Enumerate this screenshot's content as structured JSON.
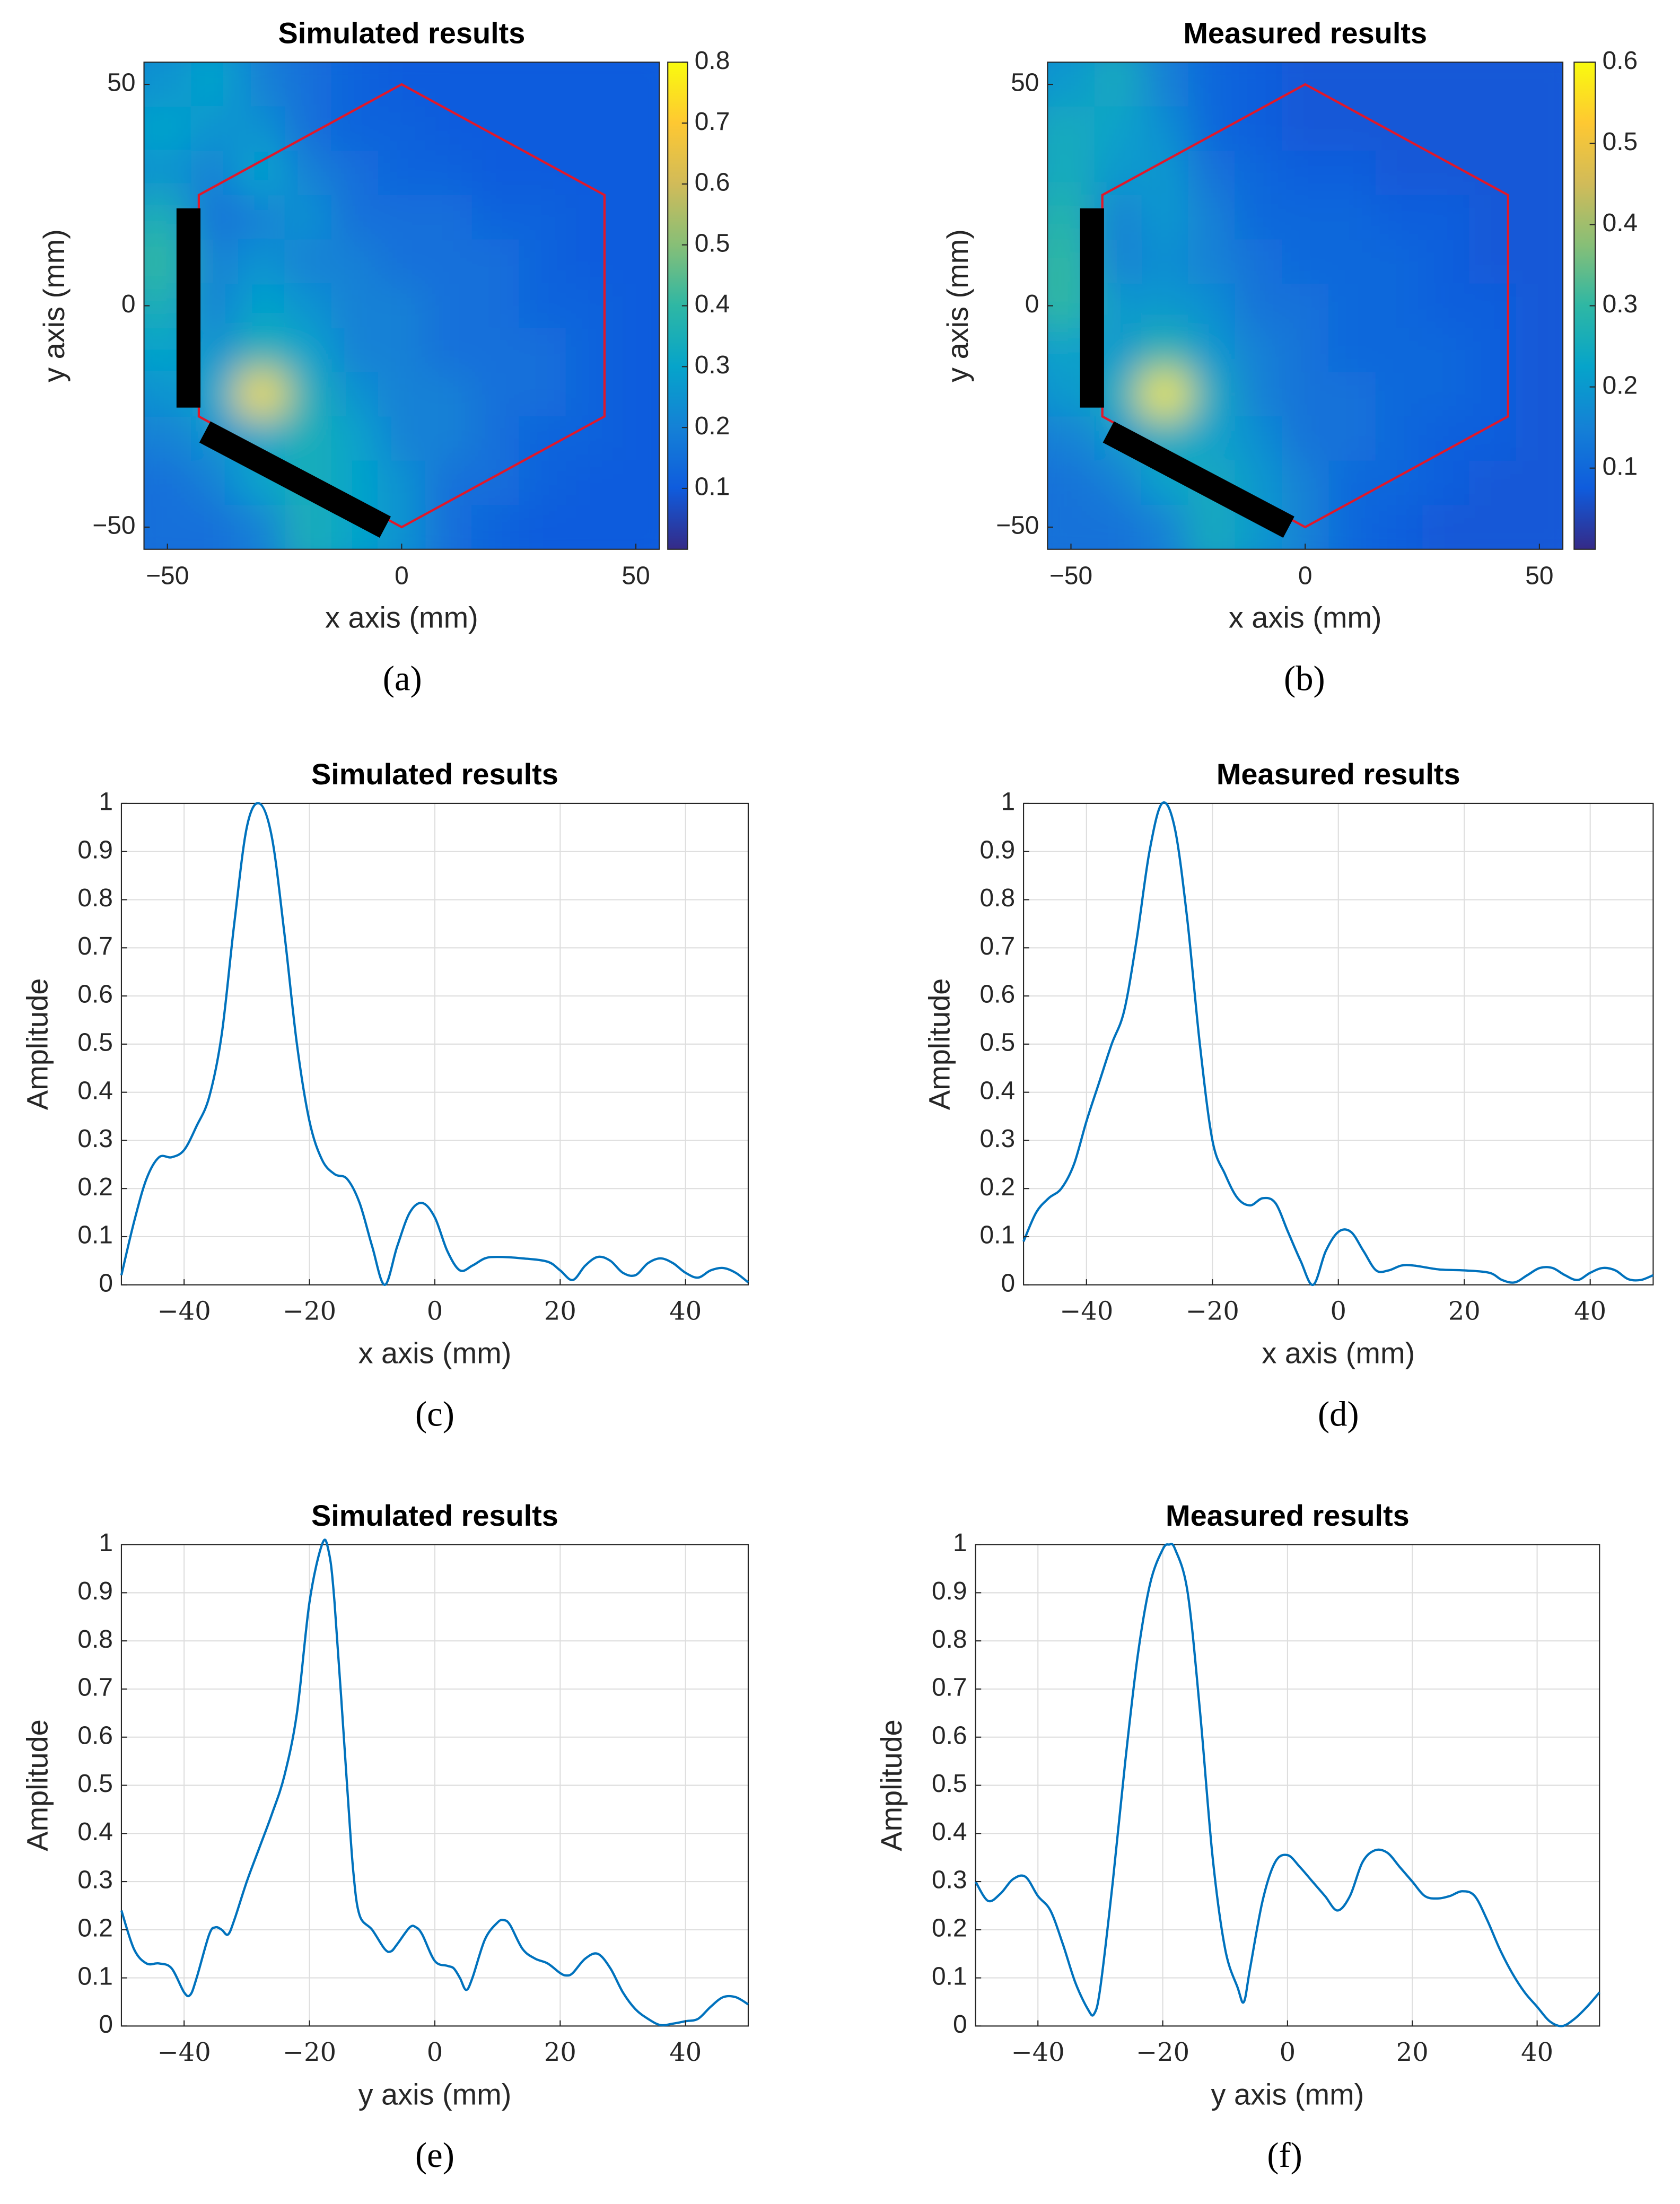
{
  "chart_data": [
    {
      "type": "heatmap",
      "title": "Simulated results",
      "xlabel": "x axis (mm)",
      "ylabel": "y axis (mm)",
      "caption": "(a)",
      "colormap": "parula",
      "x": [
        -50,
        -40,
        -30,
        -20,
        -10,
        0,
        10,
        20,
        30,
        40,
        50
      ],
      "y": [
        50,
        40,
        30,
        20,
        10,
        0,
        -10,
        -20,
        -30,
        -40,
        -50
      ],
      "z": [
        [
          0.25,
          0.3,
          0.2,
          0.15,
          0.12,
          0.1,
          0.1,
          0.1,
          0.1,
          0.1,
          0.1
        ],
        [
          0.3,
          0.25,
          0.25,
          0.15,
          0.12,
          0.12,
          0.1,
          0.1,
          0.1,
          0.1,
          0.1
        ],
        [
          0.25,
          0.2,
          0.3,
          0.2,
          0.15,
          0.12,
          0.12,
          0.1,
          0.1,
          0.1,
          0.1
        ],
        [
          0.35,
          0.15,
          0.2,
          0.25,
          0.15,
          0.15,
          0.15,
          0.12,
          0.12,
          0.1,
          0.1
        ],
        [
          0.4,
          0.2,
          0.25,
          0.2,
          0.2,
          0.15,
          0.15,
          0.15,
          0.12,
          0.1,
          0.1
        ],
        [
          0.35,
          0.2,
          0.3,
          0.25,
          0.2,
          0.2,
          0.15,
          0.15,
          0.12,
          0.12,
          0.1
        ],
        [
          0.3,
          0.25,
          0.35,
          0.3,
          0.2,
          0.2,
          0.15,
          0.15,
          0.15,
          0.12,
          0.1
        ],
        [
          0.25,
          0.3,
          0.75,
          0.35,
          0.25,
          0.2,
          0.2,
          0.15,
          0.15,
          0.12,
          0.1
        ],
        [
          0.2,
          0.25,
          0.3,
          0.35,
          0.3,
          0.2,
          0.2,
          0.15,
          0.12,
          0.12,
          0.1
        ],
        [
          0.15,
          0.2,
          0.3,
          0.35,
          0.3,
          0.25,
          0.15,
          0.15,
          0.12,
          0.1,
          0.1
        ],
        [
          0.15,
          0.15,
          0.2,
          0.35,
          0.3,
          0.25,
          0.15,
          0.12,
          0.1,
          0.1,
          0.1
        ]
      ],
      "xlim": [
        -55,
        55
      ],
      "ylim": [
        -55,
        55
      ],
      "xticks": [
        {
          "value": -50,
          "label": "−50"
        },
        0,
        50
      ],
      "yticks": [
        {
          "value": -50,
          "label": "−50"
        },
        0,
        50
      ],
      "clim": [
        0,
        0.8
      ],
      "cticks": [
        0.1,
        0.2,
        0.3,
        0.4,
        0.5,
        0.6,
        0.7,
        0.8
      ]
    },
    {
      "type": "heatmap",
      "title": "Measured results",
      "xlabel": "x axis (mm)",
      "ylabel": "y axis (mm)",
      "caption": "(b)",
      "colormap": "parula",
      "x": [
        -50,
        -40,
        -30,
        -20,
        -10,
        0,
        10,
        20,
        30,
        40,
        50
      ],
      "y": [
        50,
        40,
        30,
        20,
        10,
        0,
        -10,
        -20,
        -30,
        -40,
        -50
      ],
      "z": [
        [
          0.2,
          0.25,
          0.15,
          0.1,
          0.08,
          0.07,
          0.07,
          0.07,
          0.07,
          0.07,
          0.07
        ],
        [
          0.25,
          0.22,
          0.18,
          0.1,
          0.08,
          0.07,
          0.07,
          0.07,
          0.07,
          0.07,
          0.07
        ],
        [
          0.25,
          0.2,
          0.2,
          0.12,
          0.1,
          0.08,
          0.08,
          0.07,
          0.07,
          0.07,
          0.07
        ],
        [
          0.28,
          0.15,
          0.2,
          0.15,
          0.1,
          0.1,
          0.1,
          0.08,
          0.08,
          0.07,
          0.07
        ],
        [
          0.3,
          0.15,
          0.18,
          0.15,
          0.12,
          0.1,
          0.1,
          0.1,
          0.08,
          0.07,
          0.07
        ],
        [
          0.3,
          0.2,
          0.2,
          0.18,
          0.12,
          0.12,
          0.1,
          0.1,
          0.08,
          0.08,
          0.07
        ],
        [
          0.22,
          0.2,
          0.28,
          0.2,
          0.15,
          0.12,
          0.1,
          0.1,
          0.1,
          0.08,
          0.07
        ],
        [
          0.2,
          0.25,
          0.58,
          0.25,
          0.15,
          0.12,
          0.12,
          0.1,
          0.1,
          0.08,
          0.07
        ],
        [
          0.15,
          0.2,
          0.25,
          0.22,
          0.18,
          0.12,
          0.12,
          0.1,
          0.08,
          0.08,
          0.07
        ],
        [
          0.12,
          0.15,
          0.22,
          0.25,
          0.2,
          0.15,
          0.1,
          0.1,
          0.08,
          0.07,
          0.07
        ],
        [
          0.12,
          0.12,
          0.15,
          0.25,
          0.2,
          0.15,
          0.1,
          0.08,
          0.07,
          0.07,
          0.07
        ]
      ],
      "xlim": [
        -55,
        55
      ],
      "ylim": [
        -55,
        55
      ],
      "xticks": [
        {
          "value": -50,
          "label": "−50"
        },
        0,
        50
      ],
      "yticks": [
        {
          "value": -50,
          "label": "−50"
        },
        0,
        50
      ],
      "clim": [
        0,
        0.6
      ],
      "cticks": [
        0.1,
        0.2,
        0.3,
        0.4,
        0.5,
        0.6
      ]
    },
    {
      "type": "line",
      "title": "Simulated results",
      "xlabel": "x axis (mm)",
      "ylabel": "Amplitude",
      "caption": "(c)",
      "color": "#0072bd",
      "grid": true,
      "x": [
        -50,
        -48,
        -46,
        -44,
        -42,
        -40,
        -38,
        -36,
        -34,
        -32,
        -30,
        -28,
        -26,
        -24,
        -22,
        -20,
        -18,
        -16,
        -14,
        -12,
        -10,
        -8,
        -6,
        -4,
        -2,
        0,
        2,
        4,
        6,
        8,
        10,
        14,
        18,
        20,
        22,
        24,
        26,
        28,
        30,
        32,
        34,
        36,
        38,
        40,
        42,
        44,
        46,
        48,
        50
      ],
      "values": [
        0.02,
        0.13,
        0.22,
        0.265,
        0.265,
        0.28,
        0.33,
        0.39,
        0.52,
        0.75,
        0.95,
        1.0,
        0.93,
        0.73,
        0.5,
        0.34,
        0.26,
        0.23,
        0.22,
        0.17,
        0.08,
        0.0,
        0.08,
        0.15,
        0.17,
        0.14,
        0.07,
        0.03,
        0.04,
        0.055,
        0.058,
        0.055,
        0.048,
        0.03,
        0.01,
        0.04,
        0.058,
        0.05,
        0.025,
        0.02,
        0.045,
        0.055,
        0.045,
        0.025,
        0.015,
        0.03,
        0.035,
        0.025,
        0.005
      ],
      "xlim": [
        -50,
        50
      ],
      "ylim": [
        0,
        1
      ],
      "xticks": [
        {
          "value": -40,
          "label": "−40"
        },
        {
          "value": -20,
          "label": "−20"
        },
        0,
        20,
        40
      ],
      "yticks": [
        0,
        0.1,
        0.2,
        0.3,
        0.4,
        0.5,
        0.6,
        0.7,
        0.8,
        0.9,
        1
      ]
    },
    {
      "type": "line",
      "title": "Measured results",
      "xlabel": "x axis (mm)",
      "ylabel": "Amplitude",
      "caption": "(d)",
      "color": "#0072bd",
      "grid": true,
      "x": [
        -50,
        -48,
        -46,
        -44,
        -42,
        -40,
        -38,
        -36,
        -34,
        -32,
        -30,
        -28,
        -26,
        -24,
        -22,
        -20,
        -18,
        -16,
        -14,
        -12,
        -10,
        -8,
        -6,
        -4,
        -2,
        0,
        2,
        4,
        6,
        8,
        10,
        12,
        16,
        20,
        24,
        26,
        28,
        30,
        32,
        34,
        36,
        38,
        40,
        42,
        44,
        46,
        48,
        50
      ],
      "values": [
        0.09,
        0.15,
        0.18,
        0.2,
        0.25,
        0.34,
        0.42,
        0.5,
        0.57,
        0.72,
        0.9,
        1.0,
        0.95,
        0.76,
        0.5,
        0.3,
        0.23,
        0.18,
        0.165,
        0.18,
        0.17,
        0.11,
        0.05,
        0.0,
        0.07,
        0.11,
        0.11,
        0.07,
        0.03,
        0.03,
        0.04,
        0.04,
        0.032,
        0.03,
        0.025,
        0.01,
        0.005,
        0.02,
        0.035,
        0.035,
        0.02,
        0.01,
        0.025,
        0.035,
        0.03,
        0.012,
        0.01,
        0.02
      ],
      "xlim": [
        -50,
        50
      ],
      "ylim": [
        0,
        1
      ],
      "xticks": [
        {
          "value": -40,
          "label": "−40"
        },
        {
          "value": -20,
          "label": "−20"
        },
        0,
        20,
        40
      ],
      "yticks": [
        0,
        0.1,
        0.2,
        0.3,
        0.4,
        0.5,
        0.6,
        0.7,
        0.8,
        0.9,
        1
      ]
    },
    {
      "type": "line",
      "title": "Simulated results",
      "xlabel": "y axis (mm)",
      "ylabel": "Amplitude",
      "caption": "(e)",
      "color": "#0072bd",
      "grid": true,
      "x": [
        -50,
        -48,
        -46,
        -44,
        -42,
        -40,
        -39,
        -38,
        -36,
        -35,
        -34,
        -33,
        -32,
        -30,
        -28,
        -26,
        -24,
        -22,
        -20,
        -18,
        -17,
        -16,
        -14,
        -13,
        -12,
        -10,
        -8,
        -7,
        -6,
        -4,
        -3,
        -2,
        0,
        2,
        3,
        4,
        5,
        6,
        8,
        10,
        11,
        12,
        14,
        16,
        18,
        20,
        21,
        22,
        24,
        26,
        28,
        30,
        32,
        34,
        36,
        38,
        40,
        42,
        44,
        46,
        48,
        50
      ],
      "values": [
        0.24,
        0.16,
        0.13,
        0.13,
        0.12,
        0.07,
        0.065,
        0.1,
        0.19,
        0.205,
        0.2,
        0.19,
        0.22,
        0.3,
        0.37,
        0.44,
        0.52,
        0.65,
        0.88,
        1.0,
        0.99,
        0.88,
        0.5,
        0.32,
        0.23,
        0.2,
        0.16,
        0.155,
        0.17,
        0.205,
        0.205,
        0.19,
        0.135,
        0.125,
        0.12,
        0.1,
        0.075,
        0.1,
        0.18,
        0.215,
        0.22,
        0.21,
        0.16,
        0.14,
        0.13,
        0.11,
        0.105,
        0.11,
        0.14,
        0.15,
        0.12,
        0.07,
        0.035,
        0.015,
        0.002,
        0.005,
        0.01,
        0.015,
        0.04,
        0.06,
        0.06,
        0.045
      ],
      "xlim": [
        -50,
        50
      ],
      "ylim": [
        0,
        1
      ],
      "xticks": [
        {
          "value": -40,
          "label": "−40"
        },
        {
          "value": -20,
          "label": "−20"
        },
        0,
        20,
        40
      ],
      "yticks": [
        0,
        0.1,
        0.2,
        0.3,
        0.4,
        0.5,
        0.6,
        0.7,
        0.8,
        0.9,
        1
      ]
    },
    {
      "type": "line",
      "title": "Measured results",
      "xlabel": "y axis (mm)",
      "ylabel": "Amplitude",
      "caption": "(f)",
      "color": "#0072bd",
      "grid": true,
      "x": [
        -50,
        -48,
        -46,
        -44,
        -42,
        -40,
        -38,
        -36,
        -34,
        -32,
        -31,
        -30,
        -28,
        -26,
        -24,
        -22,
        -20,
        -19,
        -18,
        -16,
        -14,
        -12,
        -10,
        -8,
        -7,
        -6,
        -4,
        -2,
        0,
        2,
        4,
        6,
        8,
        10,
        12,
        14,
        16,
        18,
        20,
        22,
        24,
        26,
        28,
        30,
        32,
        34,
        36,
        38,
        40,
        42,
        44,
        46,
        48,
        50
      ],
      "values": [
        0.3,
        0.26,
        0.275,
        0.305,
        0.31,
        0.27,
        0.24,
        0.17,
        0.09,
        0.035,
        0.025,
        0.08,
        0.3,
        0.55,
        0.77,
        0.92,
        0.99,
        1.0,
        0.99,
        0.9,
        0.65,
        0.35,
        0.16,
        0.08,
        0.05,
        0.12,
        0.26,
        0.34,
        0.355,
        0.33,
        0.3,
        0.27,
        0.24,
        0.27,
        0.34,
        0.365,
        0.36,
        0.33,
        0.3,
        0.27,
        0.265,
        0.27,
        0.28,
        0.27,
        0.22,
        0.16,
        0.11,
        0.07,
        0.04,
        0.01,
        0.0,
        0.015,
        0.04,
        0.07
      ],
      "xlim": [
        -50,
        50
      ],
      "ylim": [
        0,
        1
      ],
      "xticks": [
        {
          "value": -40,
          "label": "−40"
        },
        {
          "value": -20,
          "label": "−20"
        },
        0,
        20,
        40
      ],
      "yticks": [
        0,
        0.1,
        0.2,
        0.3,
        0.4,
        0.5,
        0.6,
        0.7,
        0.8,
        0.9,
        1
      ]
    }
  ]
}
